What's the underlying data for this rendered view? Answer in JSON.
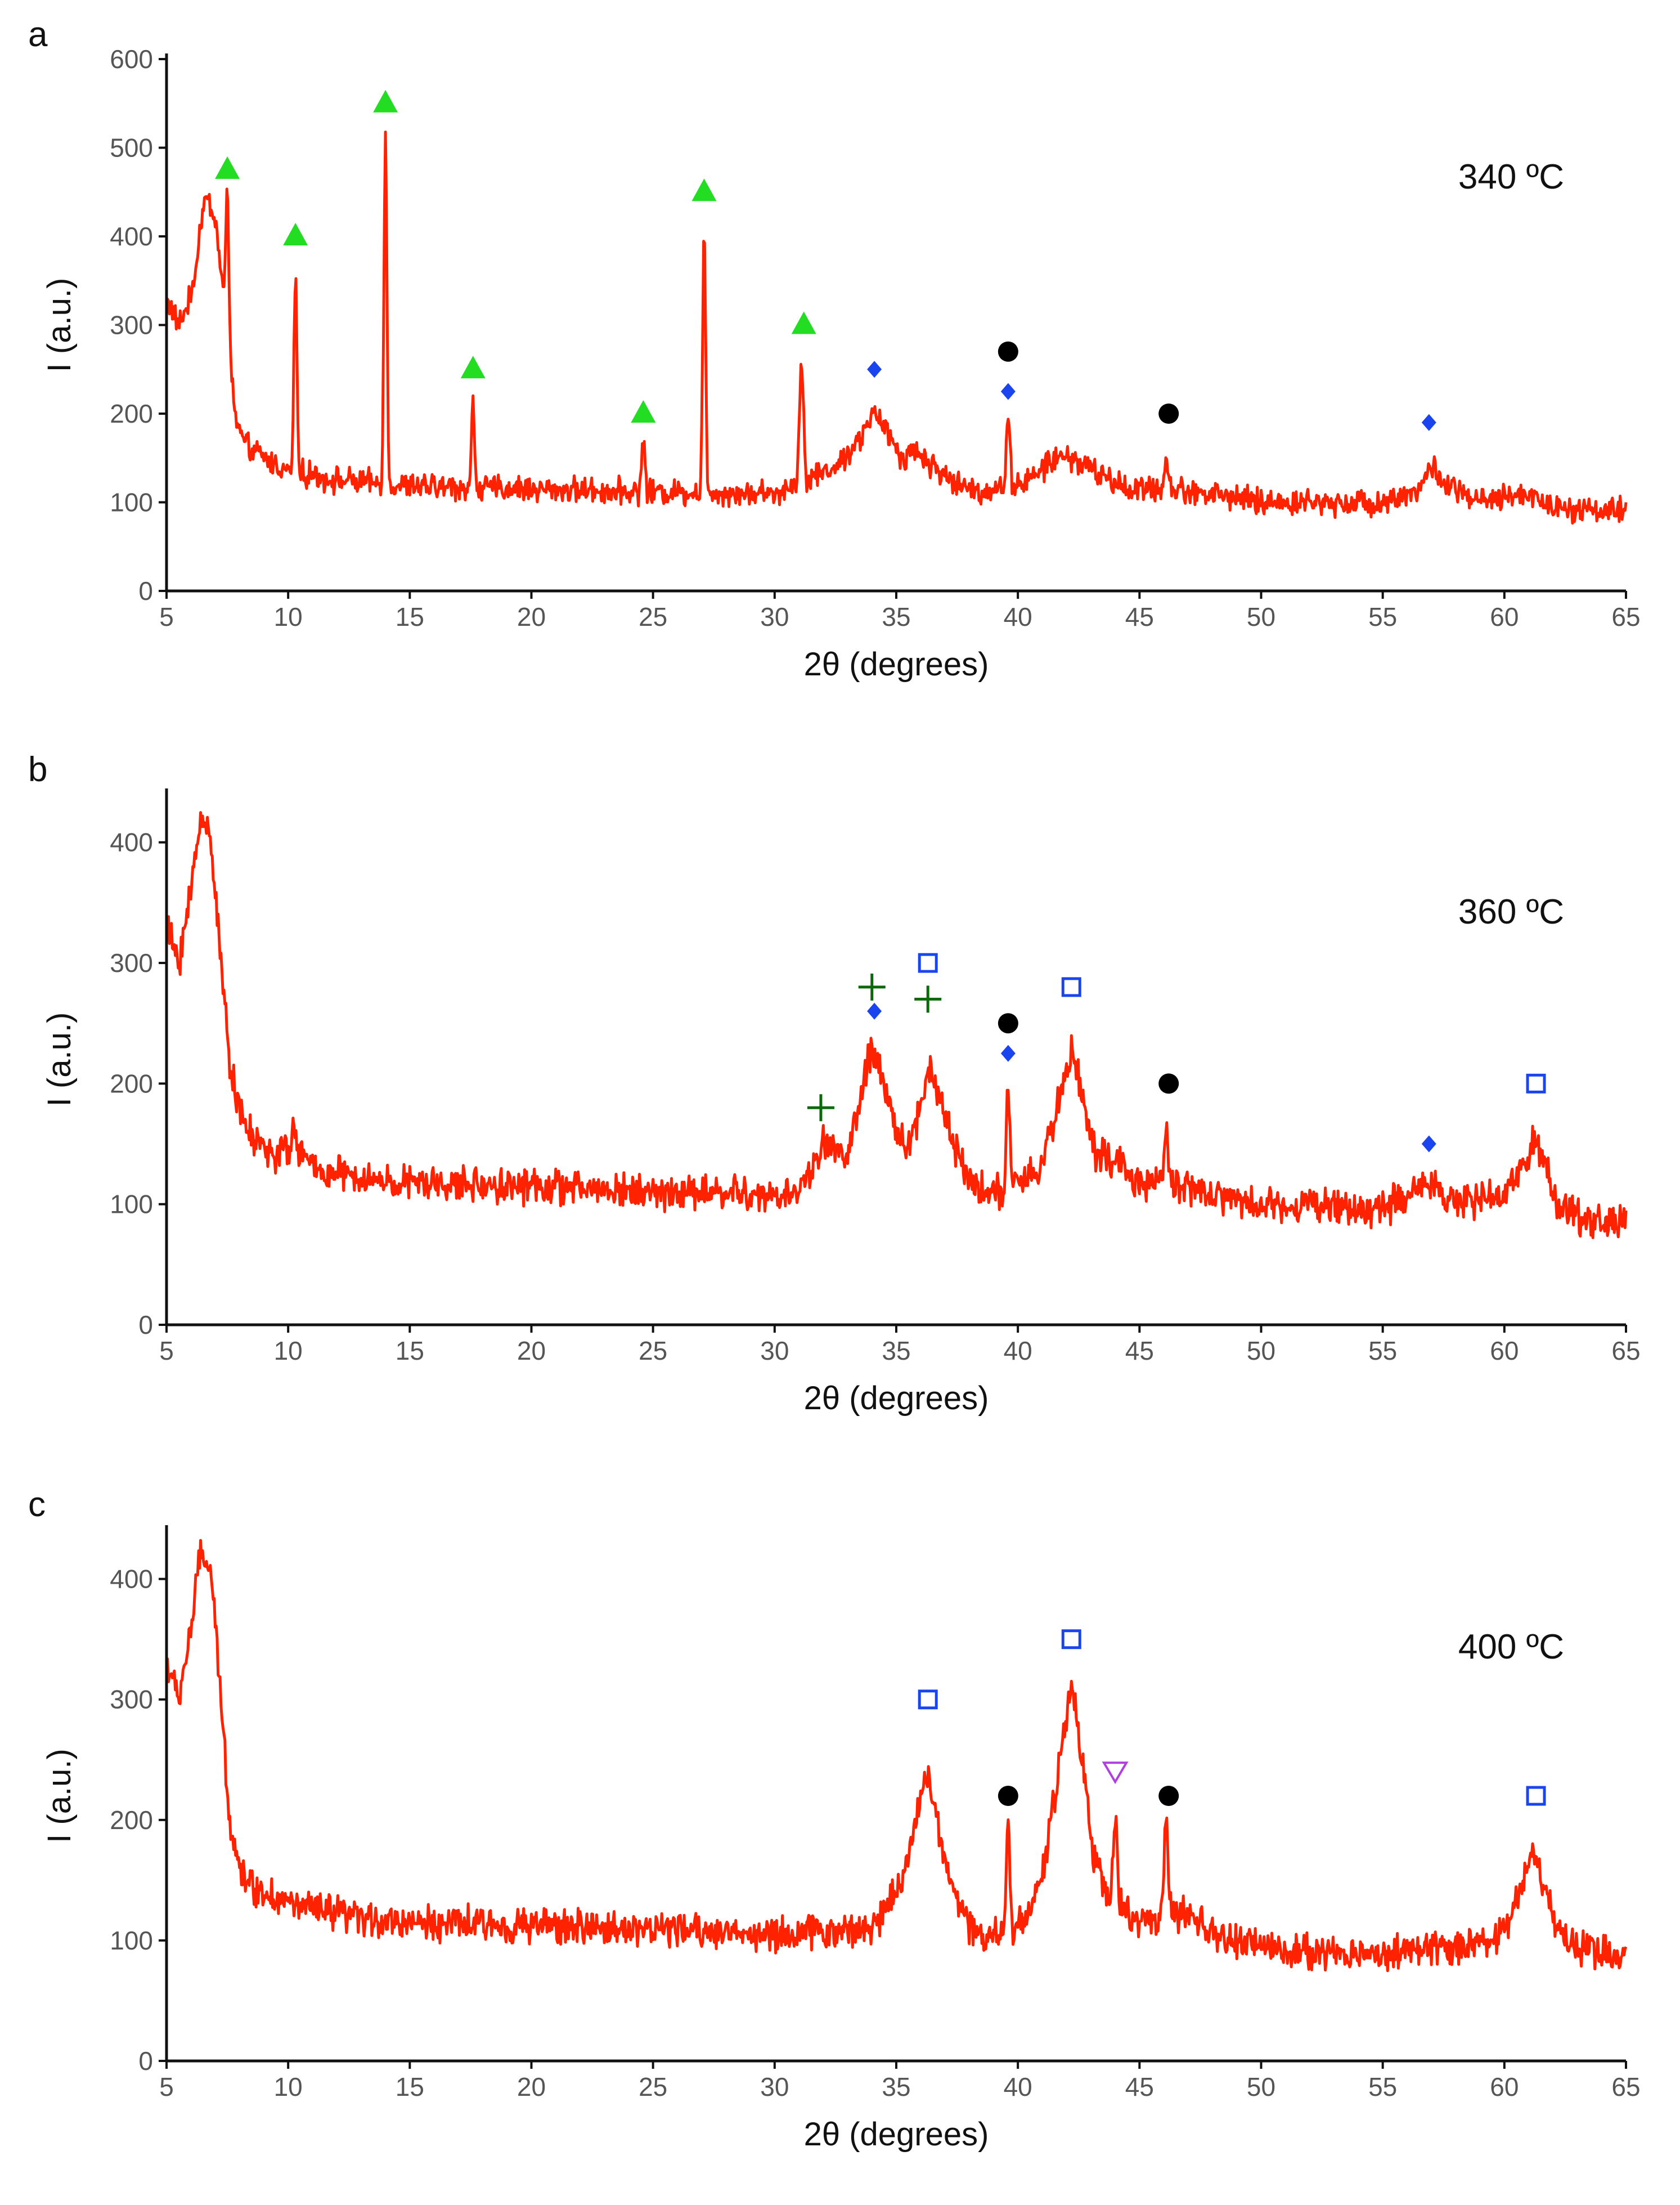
{
  "chart_data": [
    {
      "type": "line",
      "panel_label": "a",
      "annotation": "340 ºC",
      "xlabel": "2θ (degrees)",
      "ylabel": "I (a.u.)",
      "xlim": [
        5,
        65
      ],
      "ylim": [
        0,
        600
      ],
      "x_ticks": [
        5,
        10,
        15,
        20,
        25,
        30,
        35,
        40,
        45,
        50,
        55,
        60,
        65
      ],
      "y_ticks": [
        0,
        100,
        200,
        300,
        400,
        500,
        600
      ],
      "series_color": "#ff2200",
      "baseline": {
        "x": [
          5,
          5.5,
          6.0,
          6.5,
          7.0,
          7.5,
          7.8,
          8.2,
          9,
          10,
          12,
          15,
          20,
          25,
          30,
          32.5,
          33.5,
          34.0,
          34.5,
          35.2,
          35.8,
          36.5,
          37.5,
          38.5,
          39.0,
          40.5,
          41.5,
          42.2,
          43.2,
          44.5,
          46,
          48,
          50,
          52,
          55,
          56.5,
          57.0,
          57.6,
          59,
          61,
          62,
          65
        ],
        "y": [
          330,
          300,
          330,
          390,
          410,
          300,
          200,
          165,
          150,
          135,
          125,
          118,
          115,
          112,
          110,
          140,
          170,
          200,
          185,
          150,
          160,
          140,
          120,
          112,
          115,
          125,
          150,
          150,
          135,
          115,
          115,
          110,
          100,
          100,
          100,
          115,
          140,
          120,
          100,
          110,
          95,
          90
        ]
      },
      "peaks": [
        {
          "x": 6.6,
          "y": 440,
          "w": 0.25
        },
        {
          "x": 7.5,
          "y": 455,
          "w": 0.06
        },
        {
          "x": 10.3,
          "y": 360,
          "w": 0.06
        },
        {
          "x": 14.0,
          "y": 510,
          "w": 0.06
        },
        {
          "x": 17.6,
          "y": 210,
          "w": 0.06
        },
        {
          "x": 24.6,
          "y": 175,
          "w": 0.06
        },
        {
          "x": 27.1,
          "y": 405,
          "w": 0.06
        },
        {
          "x": 31.1,
          "y": 265,
          "w": 0.08
        },
        {
          "x": 39.6,
          "y": 195,
          "w": 0.07
        },
        {
          "x": 46.1,
          "y": 150,
          "w": 0.08
        }
      ],
      "noise_amplitude": 11,
      "markers": [
        {
          "symbol": "green-triangle",
          "x": 7.5,
          "y": 475
        },
        {
          "symbol": "green-triangle",
          "x": 10.3,
          "y": 400
        },
        {
          "symbol": "green-triangle",
          "x": 14.0,
          "y": 550
        },
        {
          "symbol": "green-triangle",
          "x": 17.6,
          "y": 250
        },
        {
          "symbol": "green-triangle",
          "x": 24.6,
          "y": 200
        },
        {
          "symbol": "green-triangle",
          "x": 27.1,
          "y": 450
        },
        {
          "symbol": "green-triangle",
          "x": 31.2,
          "y": 300
        },
        {
          "symbol": "blue-diamond",
          "x": 34.1,
          "y": 250
        },
        {
          "symbol": "blue-diamond",
          "x": 39.6,
          "y": 225
        },
        {
          "symbol": "blue-diamond",
          "x": 56.9,
          "y": 190
        },
        {
          "symbol": "black-circle",
          "x": 39.6,
          "y": 270
        },
        {
          "symbol": "black-circle",
          "x": 46.2,
          "y": 200
        }
      ]
    },
    {
      "type": "line",
      "panel_label": "b",
      "annotation": "360 ºC",
      "xlabel": "2θ (degrees)",
      "ylabel": "I (a.u.)",
      "xlim": [
        5,
        65
      ],
      "ylim": [
        0,
        440
      ],
      "x_ticks": [
        5,
        10,
        15,
        20,
        25,
        30,
        35,
        40,
        45,
        50,
        55,
        60,
        65
      ],
      "y_ticks": [
        0,
        100,
        200,
        300,
        400
      ],
      "series_color": "#ff2200",
      "baseline": {
        "x": [
          5,
          5.5,
          6.0,
          6.4,
          6.8,
          7.2,
          7.6,
          8.0,
          8.5,
          9.5,
          10.3,
          11,
          13,
          15,
          20,
          25,
          28,
          30,
          31,
          32.0,
          33.0,
          34.0,
          35.0,
          35.6,
          36.4,
          37.2,
          38.0,
          39.0,
          40.0,
          41.0,
          42.2,
          43.2,
          44.0,
          45.0,
          46.0,
          47.0,
          48.5,
          50,
          52,
          55,
          56.9,
          58,
          60,
          61.3,
          62.2,
          63,
          65
        ],
        "y": [
          330,
          300,
          360,
          420,
          410,
          310,
          220,
          175,
          155,
          140,
          150,
          130,
          120,
          117,
          115,
          110,
          110,
          105,
          110,
          150,
          140,
          230,
          160,
          150,
          215,
          160,
          120,
          110,
          115,
          130,
          230,
          140,
          135,
          115,
          120,
          115,
          105,
          100,
          100,
          95,
          120,
          100,
          105,
          155,
          100,
          90,
          85
        ]
      },
      "peaks": [
        {
          "x": 39.6,
          "y": 195,
          "w": 0.07
        },
        {
          "x": 46.1,
          "y": 165,
          "w": 0.08
        },
        {
          "x": 10.2,
          "y": 160,
          "w": 0.05
        }
      ],
      "noise_amplitude": 11,
      "markers": [
        {
          "symbol": "green-plus",
          "x": 31.9,
          "y": 180
        },
        {
          "symbol": "green-plus",
          "x": 34.0,
          "y": 280
        },
        {
          "symbol": "green-plus",
          "x": 36.3,
          "y": 270
        },
        {
          "symbol": "blue-diamond",
          "x": 34.1,
          "y": 260
        },
        {
          "symbol": "blue-diamond",
          "x": 39.6,
          "y": 225
        },
        {
          "symbol": "blue-diamond",
          "x": 56.9,
          "y": 150
        },
        {
          "symbol": "blue-square",
          "x": 36.3,
          "y": 300
        },
        {
          "symbol": "blue-square",
          "x": 42.2,
          "y": 280
        },
        {
          "symbol": "blue-square",
          "x": 61.3,
          "y": 200
        },
        {
          "symbol": "black-circle",
          "x": 39.6,
          "y": 250
        },
        {
          "symbol": "black-circle",
          "x": 46.2,
          "y": 200
        }
      ]
    },
    {
      "type": "line",
      "panel_label": "c",
      "annotation": "400 ºC",
      "xlabel": "2θ (degrees)",
      "ylabel": "I (a.u.)",
      "xlim": [
        5,
        65
      ],
      "ylim": [
        0,
        440
      ],
      "x_ticks": [
        5,
        10,
        15,
        20,
        25,
        30,
        35,
        40,
        45,
        50,
        55,
        60,
        65
      ],
      "y_ticks": [
        0,
        100,
        200,
        300,
        400
      ],
      "series_color": "#ff2200",
      "baseline": {
        "x": [
          5,
          5.5,
          6.0,
          6.4,
          6.8,
          7.2,
          7.6,
          8.0,
          8.5,
          9.5,
          11,
          13,
          15,
          20,
          25,
          30,
          34,
          35.2,
          36.3,
          37.2,
          38.0,
          39.0,
          40.0,
          41.0,
          42.2,
          43.2,
          44.0,
          45.0,
          46.0,
          47.0,
          48.5,
          50,
          52,
          55,
          58,
          60,
          61.2,
          62.2,
          63,
          65
        ],
        "y": [
          330,
          300,
          360,
          420,
          410,
          310,
          200,
          160,
          145,
          135,
          125,
          118,
          115,
          112,
          110,
          105,
          110,
          150,
          240,
          150,
          110,
          105,
          110,
          150,
          315,
          160,
          130,
          115,
          120,
          120,
          100,
          95,
          90,
          90,
          95,
          105,
          175,
          110,
          95,
          85
        ]
      },
      "peaks": [
        {
          "x": 39.6,
          "y": 200,
          "w": 0.07
        },
        {
          "x": 44.0,
          "y": 200,
          "w": 0.08
        },
        {
          "x": 46.1,
          "y": 195,
          "w": 0.08
        }
      ],
      "noise_amplitude": 11,
      "markers": [
        {
          "symbol": "blue-square",
          "x": 36.3,
          "y": 300
        },
        {
          "symbol": "blue-square",
          "x": 42.2,
          "y": 350
        },
        {
          "symbol": "blue-square",
          "x": 61.3,
          "y": 220
        },
        {
          "symbol": "black-circle",
          "x": 39.6,
          "y": 220
        },
        {
          "symbol": "black-circle",
          "x": 46.2,
          "y": 220
        },
        {
          "symbol": "purple-inverted-triangle",
          "x": 44.0,
          "y": 240
        }
      ]
    }
  ],
  "marker_colors": {
    "green-triangle": "#22dd22",
    "blue-diamond": "#1a44ee",
    "black-circle": "#000000",
    "green-plus": "#0a6a0a",
    "blue-square": "#1a44ee",
    "purple-inverted-triangle": "#b040e0"
  }
}
